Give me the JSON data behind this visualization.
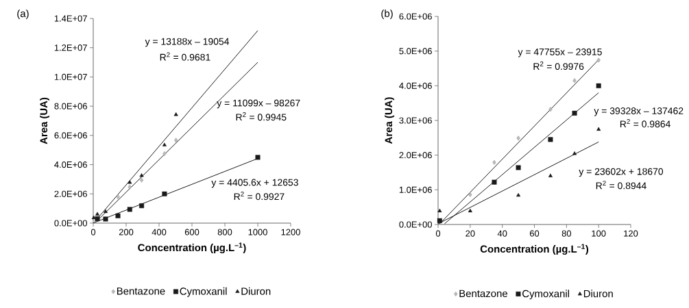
{
  "chart_data": [
    {
      "type": "scatter",
      "title": "(a)",
      "xlabel": "Concentration (µg.L$^{–1}$)",
      "ylabel": "Area (UA)",
      "xlim": [
        0,
        1200
      ],
      "xticks": [
        0,
        200,
        400,
        600,
        800,
        1000,
        1200
      ],
      "ylim": [
        0,
        14000000
      ],
      "yticks": [
        {
          "value": 0,
          "label": "0.0E+00"
        },
        {
          "value": 2000000,
          "label": "2.0E+06"
        },
        {
          "value": 4000000,
          "label": "4.0E+06"
        },
        {
          "value": 6000000,
          "label": "6.0E+06"
        },
        {
          "value": 8000000,
          "label": "8.0E+06"
        },
        {
          "value": 10000000,
          "label": "1.0E+07"
        },
        {
          "value": 12000000,
          "label": "1.2E+07"
        },
        {
          "value": 14000000,
          "label": "1.4E+07"
        }
      ],
      "legend": "bottom",
      "grid": false,
      "series": [
        {
          "name": "Bentazone",
          "color": "#8c8c8c",
          "marker": "diamond",
          "x": [
            150,
            222,
            294,
            433,
            503
          ],
          "values": [
            1800000,
            2470000,
            2940000,
            4750000,
            5670000
          ]
        },
        {
          "name": "Cymoxanil",
          "color": "#1a1a1a",
          "marker": "square",
          "x": [
            25,
            75,
            150,
            222,
            294,
            433,
            1000
          ],
          "values": [
            300000,
            280000,
            500000,
            940000,
            1190000,
            2000000,
            4500000
          ]
        },
        {
          "name": "Diuron",
          "color": "#1a1a1a",
          "marker": "triangle",
          "x": [
            3,
            25,
            75,
            222,
            294,
            433,
            503
          ],
          "values": [
            360000,
            600000,
            780000,
            2780000,
            3250000,
            5340000,
            7420000
          ]
        },
        {
          "type": "line",
          "color": "#1a1a1a",
          "marker": "none",
          "line_style": "solid",
          "x": [
            20,
            1000
          ],
          "values": [
            120000,
            11000000
          ]
        },
        {
          "type": "line",
          "color": "#1a1a1a",
          "marker": "none",
          "line_style": "solid",
          "x": [
            0,
            1000
          ],
          "values": [
            10000,
            4420000
          ]
        },
        {
          "type": "line",
          "color": "#1a1a1a",
          "marker": "none",
          "line_style": "solid",
          "x": [
            10,
            1000
          ],
          "values": [
            110000,
            13170000
          ]
        }
      ],
      "annotations": [
        "y = 13188x – 19054",
        "R$^{2}$ = 0.9681",
        "y = 11099x – 98267",
        "R$^{2}$ = 0.9945",
        "y = 4405.6x + 12653",
        "R$^{2}$ = 0.9927"
      ]
    },
    {
      "type": "scatter",
      "title": "(b)",
      "xlabel": "Concentration (µg.L$^{–1}$)",
      "ylabel": "Area (UA)",
      "xlim": [
        0,
        120
      ],
      "xticks": [
        0,
        20,
        40,
        60,
        80,
        100,
        120
      ],
      "ylim": [
        0,
        6000000
      ],
      "yticks": [
        {
          "value": 0,
          "label": "0.0E+00"
        },
        {
          "value": 1000000,
          "label": "1.0E+06"
        },
        {
          "value": 2000000,
          "label": "2.0E+06"
        },
        {
          "value": 3000000,
          "label": "3.0E+06"
        },
        {
          "value": 4000000,
          "label": "4.0E+06"
        },
        {
          "value": 5000000,
          "label": "5.0E+06"
        },
        {
          "value": 6000000,
          "label": "6.0E+06"
        }
      ],
      "legend": "bottom",
      "grid": false,
      "series": [
        {
          "name": "Bentazone",
          "color": "#8c8c8c",
          "marker": "diamond",
          "x": [
            20,
            35,
            50,
            70,
            85,
            100
          ],
          "values": [
            860000,
            1790000,
            2490000,
            3320000,
            4150000,
            4740000
          ]
        },
        {
          "name": "Cymoxanil",
          "color": "#1a1a1a",
          "marker": "square",
          "x": [
            1,
            35,
            50,
            70,
            85,
            100
          ],
          "values": [
            110000,
            1220000,
            1640000,
            2450000,
            3210000,
            4000000
          ]
        },
        {
          "name": "Diuron",
          "color": "#1a1a1a",
          "marker": "triangle",
          "x": [
            1,
            20,
            50,
            70,
            85,
            100
          ],
          "values": [
            390000,
            390000,
            840000,
            1400000,
            2040000,
            2740000
          ]
        },
        {
          "type": "line",
          "color": "#1a1a1a",
          "marker": "none",
          "line_style": "solid",
          "x": [
            1,
            100
          ],
          "values": [
            20000,
            4750000
          ]
        },
        {
          "type": "line",
          "color": "#1a1a1a",
          "marker": "none",
          "line_style": "solid",
          "x": [
            4,
            100
          ],
          "values": [
            20000,
            3800000
          ]
        },
        {
          "type": "line",
          "color": "#1a1a1a",
          "marker": "none",
          "line_style": "solid",
          "x": [
            0,
            100
          ],
          "values": [
            20000,
            2380000
          ]
        }
      ],
      "annotations": [
        "y = 47755x – 23915",
        "R$^{2}$ = 0.9976",
        "y = 39328x – 137462",
        "R$^{2}$ = 0.9864",
        "y = 23602x + 18670",
        "R$^{2}$ = 0.8944"
      ]
    }
  ]
}
